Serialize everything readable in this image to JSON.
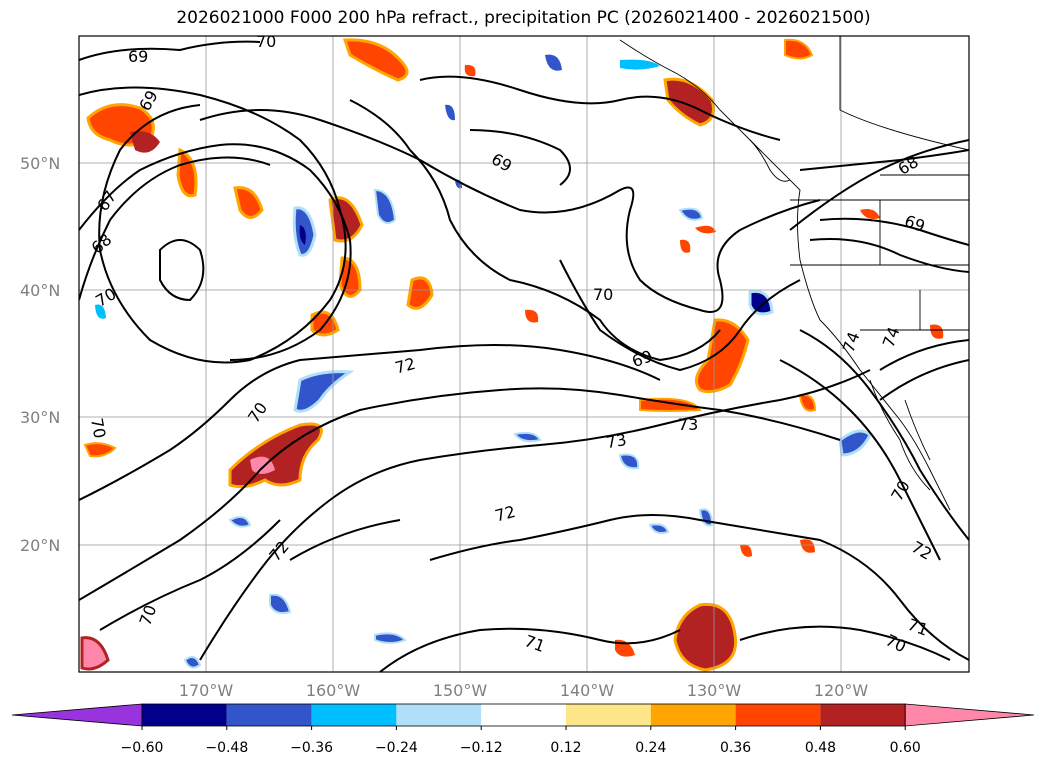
{
  "title": "2026021000 F000 200 hPa refract., precipitation PC (2026021400 - 2026021500)",
  "lat_labels": [
    "50°N",
    "40°N",
    "30°N",
    "20°N"
  ],
  "lon_labels": [
    "170°W",
    "160°W",
    "150°W",
    "140°W",
    "130°W",
    "120°W"
  ],
  "colorbar": {
    "ticks": [
      "−0.60",
      "−0.48",
      "−0.36",
      "−0.24",
      "−0.12",
      "0.12",
      "0.24",
      "0.36",
      "0.48",
      "0.60"
    ],
    "colors": [
      "#9933dd",
      "#00008b",
      "#3355cc",
      "#00bfff",
      "#b0e0f8",
      "#ffffff",
      "#fde68a",
      "#ffa500",
      "#ff4500",
      "#b22222",
      "#ff88aa"
    ]
  },
  "contour_labels": [
    "70",
    "69",
    "69",
    "67",
    "68",
    "70",
    "69",
    "70",
    "69",
    "72",
    "70",
    "70",
    "73",
    "73",
    "72",
    "72",
    "70",
    "71",
    "71",
    "70",
    "72",
    "74",
    "74",
    "68",
    "69",
    "70"
  ],
  "colors": {
    "contour": "#000000",
    "grid": "#999999",
    "axis_label": "#808080"
  }
}
